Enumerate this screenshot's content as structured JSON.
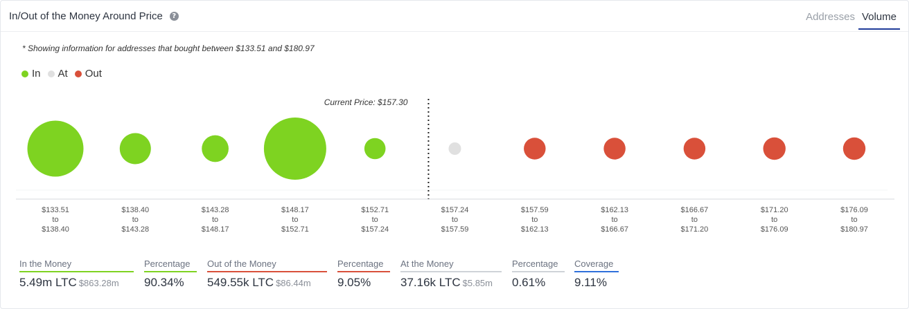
{
  "header": {
    "title": "In/Out of the Money Around Price",
    "help_icon": "?",
    "tabs": [
      {
        "label": "Addresses",
        "active": false
      },
      {
        "label": "Volume",
        "active": true
      }
    ]
  },
  "note": "* Showing information for addresses that bought between $133.51 and $180.97",
  "legend": [
    {
      "label": "In",
      "color": "#7ed321"
    },
    {
      "label": "At",
      "color": "#e0e0e0"
    },
    {
      "label": "Out",
      "color": "#d9503a"
    }
  ],
  "chart_data": {
    "type": "scatter",
    "current_price_label": "Current Price: $157.30",
    "buckets": [
      {
        "from": "$133.51",
        "to": "$138.40",
        "status": "in",
        "relative_size": 0.9
      },
      {
        "from": "$138.40",
        "to": "$143.28",
        "status": "in",
        "relative_size": 0.5
      },
      {
        "from": "$143.28",
        "to": "$148.17",
        "status": "in",
        "relative_size": 0.43
      },
      {
        "from": "$148.17",
        "to": "$152.71",
        "status": "in",
        "relative_size": 1.0
      },
      {
        "from": "$152.71",
        "to": "$157.24",
        "status": "in",
        "relative_size": 0.34
      },
      {
        "from": "$157.24",
        "to": "$157.59",
        "status": "at",
        "relative_size": 0.2
      },
      {
        "from": "$157.59",
        "to": "$162.13",
        "status": "out",
        "relative_size": 0.35
      },
      {
        "from": "$162.13",
        "to": "$166.67",
        "status": "out",
        "relative_size": 0.35
      },
      {
        "from": "$166.67",
        "to": "$171.20",
        "status": "out",
        "relative_size": 0.35
      },
      {
        "from": "$171.20",
        "to": "$176.09",
        "status": "out",
        "relative_size": 0.36
      },
      {
        "from": "$176.09",
        "to": "$180.97",
        "status": "out",
        "relative_size": 0.36
      }
    ],
    "to_word": "to",
    "colors": {
      "in": "#7ed321",
      "at": "#e0e0e0",
      "out": "#d9503a"
    }
  },
  "stats": [
    {
      "label": "In the Money",
      "value": "5.49m LTC",
      "sub": "$863.28m",
      "underline": "#7ed321"
    },
    {
      "label": "Percentage",
      "value": "90.34%",
      "sub": "",
      "underline": "#7ed321"
    },
    {
      "label": "Out of the Money",
      "value": "549.55k LTC",
      "sub": "$86.44m",
      "underline": "#d9503a"
    },
    {
      "label": "Percentage",
      "value": "9.05%",
      "sub": "",
      "underline": "#d9503a"
    },
    {
      "label": "At the Money",
      "value": "37.16k LTC",
      "sub": "$5.85m",
      "underline": "#cfd3d8"
    },
    {
      "label": "Percentage",
      "value": "0.61%",
      "sub": "",
      "underline": "#cfd3d8"
    },
    {
      "label": "Coverage",
      "value": "9.11%",
      "sub": "",
      "underline": "#2f6fdb"
    }
  ]
}
